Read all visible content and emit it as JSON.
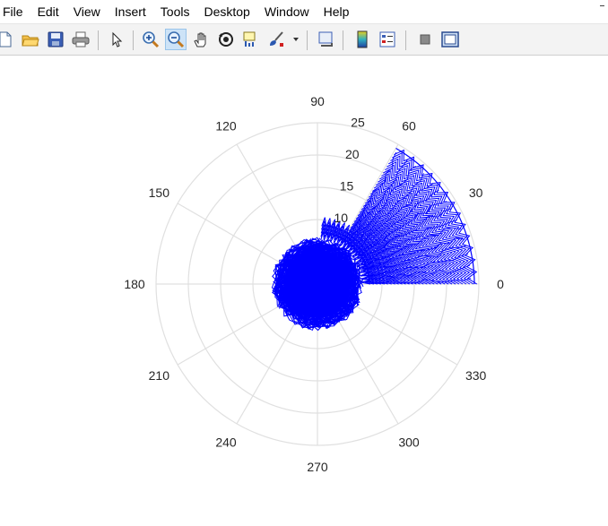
{
  "menubar": {
    "items": [
      "File",
      "Edit",
      "View",
      "Insert",
      "Tools",
      "Desktop",
      "Window",
      "Help"
    ]
  },
  "toolbar": {
    "buttons": [
      {
        "icon": "new-figure-icon"
      },
      {
        "icon": "open-file-icon"
      },
      {
        "icon": "save-icon"
      },
      {
        "icon": "print-icon"
      },
      {
        "icon": "select-arrow-icon"
      },
      {
        "icon": "zoom-in-icon"
      },
      {
        "icon": "zoom-out-icon",
        "active": true
      },
      {
        "icon": "pan-hand-icon"
      },
      {
        "icon": "rotate-3d-icon"
      },
      {
        "icon": "data-cursor-icon"
      },
      {
        "icon": "brush-icon"
      },
      {
        "icon": "brush-dropdown-icon"
      },
      {
        "icon": "link-plot-icon"
      },
      {
        "icon": "colorbar-icon"
      },
      {
        "icon": "legend-icon"
      },
      {
        "icon": "hide-plot-tools-icon"
      },
      {
        "icon": "show-plot-tools-icon"
      }
    ]
  },
  "colors": {
    "series": "#0000ff",
    "grid": "#e0e0e0",
    "text": "#262626"
  },
  "chart_data": {
    "type": "polar",
    "theta_ticks": [
      "0",
      "30",
      "60",
      "90",
      "120",
      "150",
      "180",
      "210",
      "240",
      "270",
      "300",
      "330"
    ],
    "r_ticks": [
      "10",
      "15",
      "20",
      "25"
    ],
    "r_lim": [
      0,
      25
    ],
    "theta_zero": "right",
    "theta_direction": "counterclockwise",
    "grid": true,
    "series": [
      {
        "style": "line",
        "color": "#0000ff",
        "regions": [
          {
            "description_theta_deg": [
              0,
              360
            ],
            "r_range": [
              0,
              7
            ]
          },
          {
            "description_theta_deg": [
              0,
              60
            ],
            "r_range": [
              7,
              24
            ]
          },
          {
            "description_theta_deg": [
              60,
              90
            ],
            "r_range": [
              7,
              10
            ]
          }
        ]
      }
    ]
  }
}
